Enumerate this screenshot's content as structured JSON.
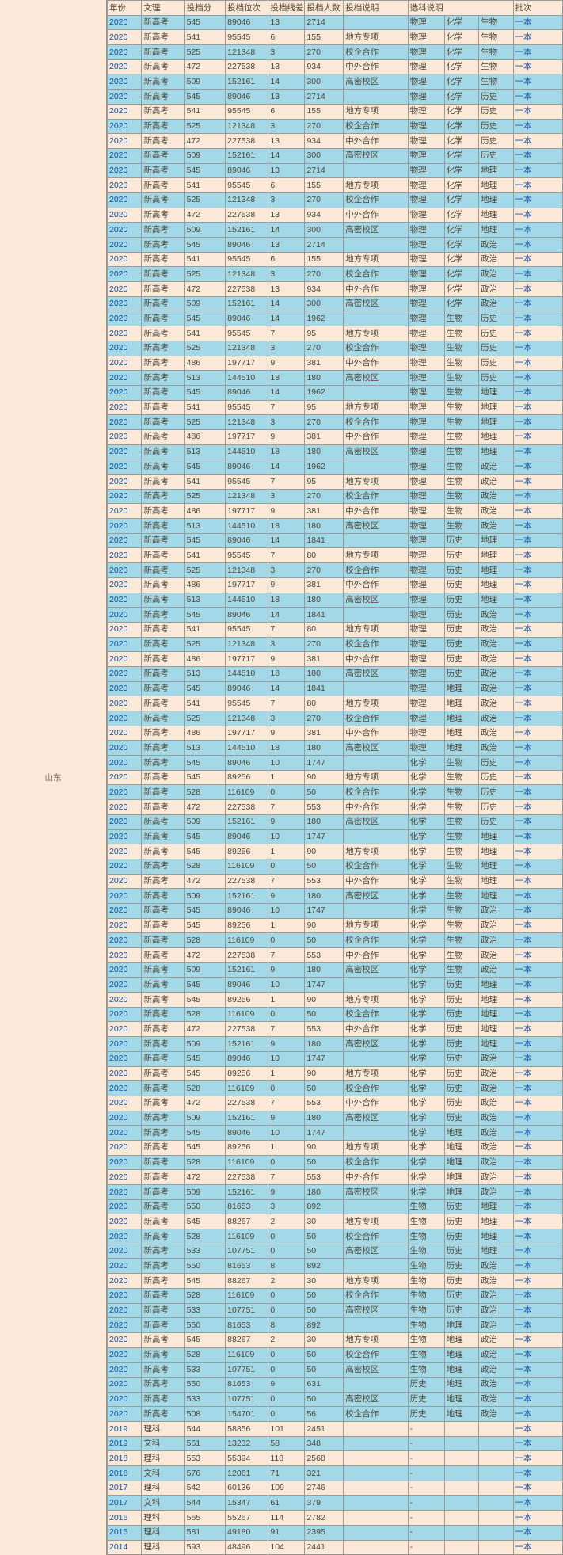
{
  "province": "山东",
  "colors": {
    "blue": "#a3d9e7",
    "tan": "#fce8d7",
    "border": "#9a9a9a",
    "link": "#1051a5",
    "text": "#504638"
  },
  "headers": [
    "年份",
    "文理",
    "投档分",
    "投档位次",
    "投档线差",
    "投档人数",
    "投档说明",
    "选科说明",
    "",
    "",
    "批次"
  ],
  "rows": [
    [
      "2020",
      "新高考",
      "545",
      "89046",
      "13",
      "2714",
      "",
      "物理",
      "化学",
      "生物",
      "一本",
      "blue"
    ],
    [
      "2020",
      "新高考",
      "541",
      "95545",
      "6",
      "155",
      "地方专项",
      "物理",
      "化学",
      "生物",
      "一本",
      "tan"
    ],
    [
      "2020",
      "新高考",
      "525",
      "121348",
      "3",
      "270",
      "校企合作",
      "物理",
      "化学",
      "生物",
      "一本",
      "blue"
    ],
    [
      "2020",
      "新高考",
      "472",
      "227538",
      "13",
      "934",
      "中外合作",
      "物理",
      "化学",
      "生物",
      "一本",
      "tan"
    ],
    [
      "2020",
      "新高考",
      "509",
      "152161",
      "14",
      "300",
      "高密校区",
      "物理",
      "化学",
      "生物",
      "一本",
      "blue"
    ],
    [
      "2020",
      "新高考",
      "545",
      "89046",
      "13",
      "2714",
      "",
      "物理",
      "化学",
      "历史",
      "一本",
      "blue"
    ],
    [
      "2020",
      "新高考",
      "541",
      "95545",
      "6",
      "155",
      "地方专项",
      "物理",
      "化学",
      "历史",
      "一本",
      "tan"
    ],
    [
      "2020",
      "新高考",
      "525",
      "121348",
      "3",
      "270",
      "校企合作",
      "物理",
      "化学",
      "历史",
      "一本",
      "blue"
    ],
    [
      "2020",
      "新高考",
      "472",
      "227538",
      "13",
      "934",
      "中外合作",
      "物理",
      "化学",
      "历史",
      "一本",
      "tan"
    ],
    [
      "2020",
      "新高考",
      "509",
      "152161",
      "14",
      "300",
      "高密校区",
      "物理",
      "化学",
      "历史",
      "一本",
      "blue"
    ],
    [
      "2020",
      "新高考",
      "545",
      "89046",
      "13",
      "2714",
      "",
      "物理",
      "化学",
      "地理",
      "一本",
      "blue"
    ],
    [
      "2020",
      "新高考",
      "541",
      "95545",
      "6",
      "155",
      "地方专项",
      "物理",
      "化学",
      "地理",
      "一本",
      "tan"
    ],
    [
      "2020",
      "新高考",
      "525",
      "121348",
      "3",
      "270",
      "校企合作",
      "物理",
      "化学",
      "地理",
      "一本",
      "blue"
    ],
    [
      "2020",
      "新高考",
      "472",
      "227538",
      "13",
      "934",
      "中外合作",
      "物理",
      "化学",
      "地理",
      "一本",
      "tan"
    ],
    [
      "2020",
      "新高考",
      "509",
      "152161",
      "14",
      "300",
      "高密校区",
      "物理",
      "化学",
      "地理",
      "一本",
      "blue"
    ],
    [
      "2020",
      "新高考",
      "545",
      "89046",
      "13",
      "2714",
      "",
      "物理",
      "化学",
      "政治",
      "一本",
      "blue"
    ],
    [
      "2020",
      "新高考",
      "541",
      "95545",
      "6",
      "155",
      "地方专项",
      "物理",
      "化学",
      "政治",
      "一本",
      "tan"
    ],
    [
      "2020",
      "新高考",
      "525",
      "121348",
      "3",
      "270",
      "校企合作",
      "物理",
      "化学",
      "政治",
      "一本",
      "blue"
    ],
    [
      "2020",
      "新高考",
      "472",
      "227538",
      "13",
      "934",
      "中外合作",
      "物理",
      "化学",
      "政治",
      "一本",
      "tan"
    ],
    [
      "2020",
      "新高考",
      "509",
      "152161",
      "14",
      "300",
      "高密校区",
      "物理",
      "化学",
      "政治",
      "一本",
      "blue"
    ],
    [
      "2020",
      "新高考",
      "545",
      "89046",
      "14",
      "1962",
      "",
      "物理",
      "生物",
      "历史",
      "一本",
      "blue"
    ],
    [
      "2020",
      "新高考",
      "541",
      "95545",
      "7",
      "95",
      "地方专项",
      "物理",
      "生物",
      "历史",
      "一本",
      "tan"
    ],
    [
      "2020",
      "新高考",
      "525",
      "121348",
      "3",
      "270",
      "校企合作",
      "物理",
      "生物",
      "历史",
      "一本",
      "blue"
    ],
    [
      "2020",
      "新高考",
      "486",
      "197717",
      "9",
      "381",
      "中外合作",
      "物理",
      "生物",
      "历史",
      "一本",
      "tan"
    ],
    [
      "2020",
      "新高考",
      "513",
      "144510",
      "18",
      "180",
      "高密校区",
      "物理",
      "生物",
      "历史",
      "一本",
      "blue"
    ],
    [
      "2020",
      "新高考",
      "545",
      "89046",
      "14",
      "1962",
      "",
      "物理",
      "生物",
      "地理",
      "一本",
      "blue"
    ],
    [
      "2020",
      "新高考",
      "541",
      "95545",
      "7",
      "95",
      "地方专项",
      "物理",
      "生物",
      "地理",
      "一本",
      "tan"
    ],
    [
      "2020",
      "新高考",
      "525",
      "121348",
      "3",
      "270",
      "校企合作",
      "物理",
      "生物",
      "地理",
      "一本",
      "blue"
    ],
    [
      "2020",
      "新高考",
      "486",
      "197717",
      "9",
      "381",
      "中外合作",
      "物理",
      "生物",
      "地理",
      "一本",
      "tan"
    ],
    [
      "2020",
      "新高考",
      "513",
      "144510",
      "18",
      "180",
      "高密校区",
      "物理",
      "生物",
      "地理",
      "一本",
      "blue"
    ],
    [
      "2020",
      "新高考",
      "545",
      "89046",
      "14",
      "1962",
      "",
      "物理",
      "生物",
      "政治",
      "一本",
      "blue"
    ],
    [
      "2020",
      "新高考",
      "541",
      "95545",
      "7",
      "95",
      "地方专项",
      "物理",
      "生物",
      "政治",
      "一本",
      "tan"
    ],
    [
      "2020",
      "新高考",
      "525",
      "121348",
      "3",
      "270",
      "校企合作",
      "物理",
      "生物",
      "政治",
      "一本",
      "blue"
    ],
    [
      "2020",
      "新高考",
      "486",
      "197717",
      "9",
      "381",
      "中外合作",
      "物理",
      "生物",
      "政治",
      "一本",
      "tan"
    ],
    [
      "2020",
      "新高考",
      "513",
      "144510",
      "18",
      "180",
      "高密校区",
      "物理",
      "生物",
      "政治",
      "一本",
      "blue"
    ],
    [
      "2020",
      "新高考",
      "545",
      "89046",
      "14",
      "1841",
      "",
      "物理",
      "历史",
      "地理",
      "一本",
      "blue"
    ],
    [
      "2020",
      "新高考",
      "541",
      "95545",
      "7",
      "80",
      "地方专项",
      "物理",
      "历史",
      "地理",
      "一本",
      "tan"
    ],
    [
      "2020",
      "新高考",
      "525",
      "121348",
      "3",
      "270",
      "校企合作",
      "物理",
      "历史",
      "地理",
      "一本",
      "blue"
    ],
    [
      "2020",
      "新高考",
      "486",
      "197717",
      "9",
      "381",
      "中外合作",
      "物理",
      "历史",
      "地理",
      "一本",
      "tan"
    ],
    [
      "2020",
      "新高考",
      "513",
      "144510",
      "18",
      "180",
      "高密校区",
      "物理",
      "历史",
      "地理",
      "一本",
      "blue"
    ],
    [
      "2020",
      "新高考",
      "545",
      "89046",
      "14",
      "1841",
      "",
      "物理",
      "历史",
      "政治",
      "一本",
      "blue"
    ],
    [
      "2020",
      "新高考",
      "541",
      "95545",
      "7",
      "80",
      "地方专项",
      "物理",
      "历史",
      "政治",
      "一本",
      "tan"
    ],
    [
      "2020",
      "新高考",
      "525",
      "121348",
      "3",
      "270",
      "校企合作",
      "物理",
      "历史",
      "政治",
      "一本",
      "blue"
    ],
    [
      "2020",
      "新高考",
      "486",
      "197717",
      "9",
      "381",
      "中外合作",
      "物理",
      "历史",
      "政治",
      "一本",
      "tan"
    ],
    [
      "2020",
      "新高考",
      "513",
      "144510",
      "18",
      "180",
      "高密校区",
      "物理",
      "历史",
      "政治",
      "一本",
      "blue"
    ],
    [
      "2020",
      "新高考",
      "545",
      "89046",
      "14",
      "1841",
      "",
      "物理",
      "地理",
      "政治",
      "一本",
      "blue"
    ],
    [
      "2020",
      "新高考",
      "541",
      "95545",
      "7",
      "80",
      "地方专项",
      "物理",
      "地理",
      "政治",
      "一本",
      "tan"
    ],
    [
      "2020",
      "新高考",
      "525",
      "121348",
      "3",
      "270",
      "校企合作",
      "物理",
      "地理",
      "政治",
      "一本",
      "blue"
    ],
    [
      "2020",
      "新高考",
      "486",
      "197717",
      "9",
      "381",
      "中外合作",
      "物理",
      "地理",
      "政治",
      "一本",
      "tan"
    ],
    [
      "2020",
      "新高考",
      "513",
      "144510",
      "18",
      "180",
      "高密校区",
      "物理",
      "地理",
      "政治",
      "一本",
      "blue"
    ],
    [
      "2020",
      "新高考",
      "545",
      "89046",
      "10",
      "1747",
      "",
      "化学",
      "生物",
      "历史",
      "一本",
      "blue"
    ],
    [
      "2020",
      "新高考",
      "545",
      "89256",
      "1",
      "90",
      "地方专项",
      "化学",
      "生物",
      "历史",
      "一本",
      "tan"
    ],
    [
      "2020",
      "新高考",
      "528",
      "116109",
      "0",
      "50",
      "校企合作",
      "化学",
      "生物",
      "历史",
      "一本",
      "blue"
    ],
    [
      "2020",
      "新高考",
      "472",
      "227538",
      "7",
      "553",
      "中外合作",
      "化学",
      "生物",
      "历史",
      "一本",
      "tan"
    ],
    [
      "2020",
      "新高考",
      "509",
      "152161",
      "9",
      "180",
      "高密校区",
      "化学",
      "生物",
      "历史",
      "一本",
      "blue"
    ],
    [
      "2020",
      "新高考",
      "545",
      "89046",
      "10",
      "1747",
      "",
      "化学",
      "生物",
      "地理",
      "一本",
      "blue"
    ],
    [
      "2020",
      "新高考",
      "545",
      "89256",
      "1",
      "90",
      "地方专项",
      "化学",
      "生物",
      "地理",
      "一本",
      "tan"
    ],
    [
      "2020",
      "新高考",
      "528",
      "116109",
      "0",
      "50",
      "校企合作",
      "化学",
      "生物",
      "地理",
      "一本",
      "blue"
    ],
    [
      "2020",
      "新高考",
      "472",
      "227538",
      "7",
      "553",
      "中外合作",
      "化学",
      "生物",
      "地理",
      "一本",
      "tan"
    ],
    [
      "2020",
      "新高考",
      "509",
      "152161",
      "9",
      "180",
      "高密校区",
      "化学",
      "生物",
      "地理",
      "一本",
      "blue"
    ],
    [
      "2020",
      "新高考",
      "545",
      "89046",
      "10",
      "1747",
      "",
      "化学",
      "生物",
      "政治",
      "一本",
      "blue"
    ],
    [
      "2020",
      "新高考",
      "545",
      "89256",
      "1",
      "90",
      "地方专项",
      "化学",
      "生物",
      "政治",
      "一本",
      "tan"
    ],
    [
      "2020",
      "新高考",
      "528",
      "116109",
      "0",
      "50",
      "校企合作",
      "化学",
      "生物",
      "政治",
      "一本",
      "blue"
    ],
    [
      "2020",
      "新高考",
      "472",
      "227538",
      "7",
      "553",
      "中外合作",
      "化学",
      "生物",
      "政治",
      "一本",
      "tan"
    ],
    [
      "2020",
      "新高考",
      "509",
      "152161",
      "9",
      "180",
      "高密校区",
      "化学",
      "生物",
      "政治",
      "一本",
      "blue"
    ],
    [
      "2020",
      "新高考",
      "545",
      "89046",
      "10",
      "1747",
      "",
      "化学",
      "历史",
      "地理",
      "一本",
      "blue"
    ],
    [
      "2020",
      "新高考",
      "545",
      "89256",
      "1",
      "90",
      "地方专项",
      "化学",
      "历史",
      "地理",
      "一本",
      "tan"
    ],
    [
      "2020",
      "新高考",
      "528",
      "116109",
      "0",
      "50",
      "校企合作",
      "化学",
      "历史",
      "地理",
      "一本",
      "blue"
    ],
    [
      "2020",
      "新高考",
      "472",
      "227538",
      "7",
      "553",
      "中外合作",
      "化学",
      "历史",
      "地理",
      "一本",
      "tan"
    ],
    [
      "2020",
      "新高考",
      "509",
      "152161",
      "9",
      "180",
      "高密校区",
      "化学",
      "历史",
      "地理",
      "一本",
      "blue"
    ],
    [
      "2020",
      "新高考",
      "545",
      "89046",
      "10",
      "1747",
      "",
      "化学",
      "历史",
      "政治",
      "一本",
      "blue"
    ],
    [
      "2020",
      "新高考",
      "545",
      "89256",
      "1",
      "90",
      "地方专项",
      "化学",
      "历史",
      "政治",
      "一本",
      "tan"
    ],
    [
      "2020",
      "新高考",
      "528",
      "116109",
      "0",
      "50",
      "校企合作",
      "化学",
      "历史",
      "政治",
      "一本",
      "blue"
    ],
    [
      "2020",
      "新高考",
      "472",
      "227538",
      "7",
      "553",
      "中外合作",
      "化学",
      "历史",
      "政治",
      "一本",
      "tan"
    ],
    [
      "2020",
      "新高考",
      "509",
      "152161",
      "9",
      "180",
      "高密校区",
      "化学",
      "历史",
      "政治",
      "一本",
      "blue"
    ],
    [
      "2020",
      "新高考",
      "545",
      "89046",
      "10",
      "1747",
      "",
      "化学",
      "地理",
      "政治",
      "一本",
      "blue"
    ],
    [
      "2020",
      "新高考",
      "545",
      "89256",
      "1",
      "90",
      "地方专项",
      "化学",
      "地理",
      "政治",
      "一本",
      "tan"
    ],
    [
      "2020",
      "新高考",
      "528",
      "116109",
      "0",
      "50",
      "校企合作",
      "化学",
      "地理",
      "政治",
      "一本",
      "blue"
    ],
    [
      "2020",
      "新高考",
      "472",
      "227538",
      "7",
      "553",
      "中外合作",
      "化学",
      "地理",
      "政治",
      "一本",
      "tan"
    ],
    [
      "2020",
      "新高考",
      "509",
      "152161",
      "9",
      "180",
      "高密校区",
      "化学",
      "地理",
      "政治",
      "一本",
      "blue"
    ],
    [
      "2020",
      "新高考",
      "550",
      "81653",
      "3",
      "892",
      "",
      "生物",
      "历史",
      "地理",
      "一本",
      "blue"
    ],
    [
      "2020",
      "新高考",
      "545",
      "88267",
      "2",
      "30",
      "地方专项",
      "生物",
      "历史",
      "地理",
      "一本",
      "tan"
    ],
    [
      "2020",
      "新高考",
      "528",
      "116109",
      "0",
      "50",
      "校企合作",
      "生物",
      "历史",
      "地理",
      "一本",
      "blue"
    ],
    [
      "2020",
      "新高考",
      "533",
      "107751",
      "0",
      "50",
      "高密校区",
      "生物",
      "历史",
      "地理",
      "一本",
      "blue"
    ],
    [
      "2020",
      "新高考",
      "550",
      "81653",
      "8",
      "892",
      "",
      "生物",
      "历史",
      "政治",
      "一本",
      "blue"
    ],
    [
      "2020",
      "新高考",
      "545",
      "88267",
      "2",
      "30",
      "地方专项",
      "生物",
      "历史",
      "政治",
      "一本",
      "tan"
    ],
    [
      "2020",
      "新高考",
      "528",
      "116109",
      "0",
      "50",
      "校企合作",
      "生物",
      "历史",
      "政治",
      "一本",
      "blue"
    ],
    [
      "2020",
      "新高考",
      "533",
      "107751",
      "0",
      "50",
      "高密校区",
      "生物",
      "历史",
      "政治",
      "一本",
      "blue"
    ],
    [
      "2020",
      "新高考",
      "550",
      "81653",
      "8",
      "892",
      "",
      "生物",
      "地理",
      "政治",
      "一本",
      "blue"
    ],
    [
      "2020",
      "新高考",
      "545",
      "88267",
      "2",
      "30",
      "地方专项",
      "生物",
      "地理",
      "政治",
      "一本",
      "tan"
    ],
    [
      "2020",
      "新高考",
      "528",
      "116109",
      "0",
      "50",
      "校企合作",
      "生物",
      "地理",
      "政治",
      "一本",
      "blue"
    ],
    [
      "2020",
      "新高考",
      "533",
      "107751",
      "0",
      "50",
      "高密校区",
      "生物",
      "地理",
      "政治",
      "一本",
      "blue"
    ],
    [
      "2020",
      "新高考",
      "550",
      "81653",
      "9",
      "631",
      "",
      "历史",
      "地理",
      "政治",
      "一本",
      "blue"
    ],
    [
      "2020",
      "新高考",
      "533",
      "107751",
      "0",
      "50",
      "高密校区",
      "历史",
      "地理",
      "政治",
      "一本",
      "blue"
    ],
    [
      "2020",
      "新高考",
      "508",
      "154701",
      "0",
      "56",
      "校企合作",
      "历史",
      "地理",
      "政治",
      "一本",
      "blue"
    ],
    [
      "2019",
      "理科",
      "544",
      "58856",
      "101",
      "2451",
      "",
      "-",
      "",
      "",
      "一本",
      "tan"
    ],
    [
      "2019",
      "文科",
      "561",
      "13232",
      "58",
      "348",
      "",
      "-",
      "",
      "",
      "一本",
      "blue"
    ],
    [
      "2018",
      "理科",
      "553",
      "55394",
      "118",
      "2568",
      "",
      "-",
      "",
      "",
      "一本",
      "tan"
    ],
    [
      "2018",
      "文科",
      "576",
      "12061",
      "71",
      "321",
      "",
      "-",
      "",
      "",
      "一本",
      "blue"
    ],
    [
      "2017",
      "理科",
      "542",
      "60136",
      "109",
      "2746",
      "",
      "-",
      "",
      "",
      "一本",
      "tan"
    ],
    [
      "2017",
      "文科",
      "544",
      "15347",
      "61",
      "379",
      "",
      "-",
      "",
      "",
      "一本",
      "blue"
    ],
    [
      "2016",
      "理科",
      "565",
      "55267",
      "114",
      "2782",
      "",
      "-",
      "",
      "",
      "一本",
      "tan"
    ],
    [
      "2015",
      "理科",
      "581",
      "49180",
      "91",
      "2395",
      "",
      "-",
      "",
      "",
      "一本",
      "blue"
    ],
    [
      "2014",
      "理科",
      "593",
      "48496",
      "104",
      "2441",
      "",
      "-",
      "",
      "",
      "一本",
      "tan"
    ]
  ]
}
